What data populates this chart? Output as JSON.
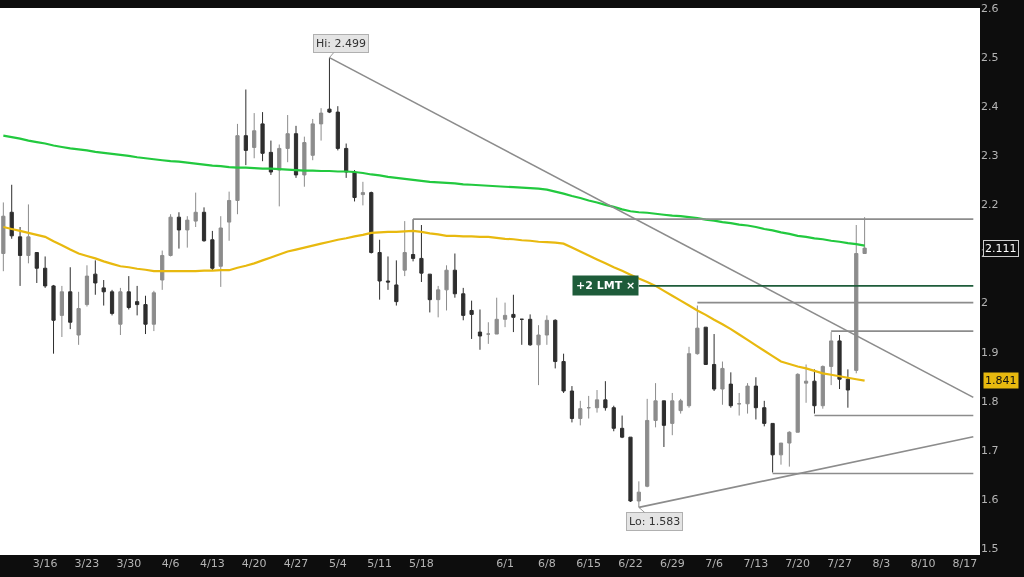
{
  "chart_data": {
    "type": "candlestick",
    "categories": [
      null,
      null,
      null,
      null,
      null,
      "3/16",
      null,
      null,
      null,
      null,
      "3/23",
      null,
      null,
      null,
      null,
      "3/30",
      null,
      null,
      null,
      null,
      "4/6",
      null,
      null,
      null,
      null,
      "4/13",
      null,
      null,
      null,
      null,
      "4/20",
      null,
      null,
      null,
      null,
      "4/27",
      null,
      null,
      null,
      null,
      "5/4",
      null,
      null,
      null,
      null,
      "5/11",
      null,
      null,
      null,
      null,
      "5/18",
      null,
      null,
      null,
      null,
      null,
      null,
      null,
      null,
      null,
      "6/1",
      null,
      null,
      null,
      null,
      "6/8",
      null,
      null,
      null,
      null,
      "6/15",
      null,
      null,
      null,
      null,
      "6/22",
      null,
      null,
      null,
      null,
      "6/29",
      null,
      null,
      null,
      null,
      "7/6",
      null,
      null,
      null,
      null,
      "7/13",
      null,
      null,
      null,
      null,
      "7/20",
      null,
      null,
      null,
      null,
      "7/27",
      null,
      null,
      null,
      null,
      "8/3",
      null,
      null,
      null,
      null,
      "8/10",
      null,
      null,
      null,
      null,
      "8/17",
      null
    ],
    "ohlc": [
      [
        2.1,
        2.204,
        2.064,
        2.176
      ],
      [
        2.184,
        2.24,
        2.13,
        2.136
      ],
      [
        2.134,
        2.154,
        2.034,
        2.096
      ],
      [
        2.096,
        2.2,
        2.08,
        2.134
      ],
      [
        2.102,
        2.102,
        2.04,
        2.07
      ],
      [
        2.07,
        2.094,
        2.03,
        2.034
      ],
      [
        2.034,
        2.036,
        1.896,
        1.964
      ],
      [
        1.974,
        2.034,
        1.93,
        2.022
      ],
      [
        2.022,
        2.072,
        1.946,
        1.96
      ],
      [
        1.934,
        2.022,
        1.914,
        1.988
      ],
      [
        1.996,
        2.076,
        1.992,
        2.054
      ],
      [
        2.058,
        2.086,
        2.016,
        2.04
      ],
      [
        2.03,
        2.046,
        1.994,
        2.022
      ],
      [
        2.022,
        2.026,
        1.974,
        1.978
      ],
      [
        1.956,
        2.03,
        1.934,
        2.022
      ],
      [
        2.022,
        2.054,
        1.986,
        1.99
      ],
      [
        2.002,
        2.034,
        1.974,
        1.996
      ],
      [
        1.996,
        2.014,
        1.936,
        1.956
      ],
      [
        1.956,
        2.024,
        1.942,
        2.02
      ],
      [
        2.046,
        2.106,
        2.026,
        2.096
      ],
      [
        2.096,
        2.18,
        2.094,
        2.174
      ],
      [
        2.174,
        2.184,
        2.11,
        2.148
      ],
      [
        2.148,
        2.176,
        2.112,
        2.168
      ],
      [
        2.166,
        2.224,
        2.154,
        2.184
      ],
      [
        2.184,
        2.194,
        2.124,
        2.126
      ],
      [
        2.128,
        2.146,
        2.066,
        2.07
      ],
      [
        2.074,
        2.176,
        2.032,
        2.152
      ],
      [
        2.164,
        2.226,
        2.126,
        2.208
      ],
      [
        2.208,
        2.364,
        2.18,
        2.34
      ],
      [
        2.34,
        2.434,
        2.28,
        2.31
      ],
      [
        2.316,
        2.386,
        2.294,
        2.35
      ],
      [
        2.364,
        2.388,
        2.288,
        2.304
      ],
      [
        2.306,
        2.33,
        2.26,
        2.266
      ],
      [
        2.27,
        2.322,
        2.196,
        2.314
      ],
      [
        2.314,
        2.382,
        2.286,
        2.344
      ],
      [
        2.344,
        2.36,
        2.254,
        2.26
      ],
      [
        2.26,
        2.338,
        2.236,
        2.326
      ],
      [
        2.3,
        2.374,
        2.29,
        2.364
      ],
      [
        2.364,
        2.396,
        2.33,
        2.386
      ],
      [
        2.394,
        2.499,
        2.386,
        2.388
      ],
      [
        2.388,
        2.4,
        2.31,
        2.314
      ],
      [
        2.314,
        2.324,
        2.254,
        2.266
      ],
      [
        2.266,
        2.27,
        2.206,
        2.214
      ],
      [
        2.22,
        2.246,
        2.198,
        2.224
      ],
      [
        2.224,
        2.226,
        2.1,
        2.102
      ],
      [
        2.102,
        2.128,
        2.006,
        2.044
      ],
      [
        2.044,
        2.094,
        2.026,
        2.042
      ],
      [
        2.036,
        2.086,
        1.994,
        2.002
      ],
      [
        2.066,
        2.166,
        2.054,
        2.102
      ],
      [
        2.098,
        2.17,
        2.084,
        2.09
      ],
      [
        2.09,
        2.158,
        2.042,
        2.06
      ],
      [
        2.058,
        2.058,
        1.98,
        2.006
      ],
      [
        2.006,
        2.034,
        1.97,
        2.026
      ],
      [
        2.026,
        2.076,
        1.984,
        2.066
      ],
      [
        2.066,
        2.1,
        2.01,
        2.018
      ],
      [
        2.018,
        2.03,
        1.964,
        1.974
      ],
      [
        1.984,
        2.004,
        1.926,
        1.976
      ],
      [
        1.94,
        1.986,
        1.904,
        1.932
      ],
      [
        1.936,
        1.96,
        1.916,
        1.936
      ],
      [
        1.936,
        2.01,
        1.936,
        1.966
      ],
      [
        1.966,
        2.0,
        1.95,
        1.974
      ],
      [
        1.976,
        2.016,
        1.94,
        1.97
      ],
      [
        1.966,
        1.966,
        1.914,
        1.966
      ],
      [
        1.966,
        1.976,
        1.912,
        1.914
      ],
      [
        1.914,
        1.954,
        1.832,
        1.934
      ],
      [
        1.934,
        1.974,
        1.914,
        1.964
      ],
      [
        1.964,
        1.966,
        1.866,
        1.88
      ],
      [
        1.88,
        1.896,
        1.816,
        1.82
      ],
      [
        1.82,
        1.83,
        1.756,
        1.764
      ],
      [
        1.764,
        1.8,
        1.75,
        1.784
      ],
      [
        1.786,
        1.81,
        1.764,
        1.786
      ],
      [
        1.786,
        1.822,
        1.776,
        1.802
      ],
      [
        1.802,
        1.84,
        1.78,
        1.786
      ],
      [
        1.786,
        1.79,
        1.738,
        1.744
      ],
      [
        1.744,
        1.77,
        1.724,
        1.726
      ],
      [
        1.726,
        1.726,
        1.594,
        1.596
      ],
      [
        1.596,
        1.636,
        1.583,
        1.614
      ],
      [
        1.626,
        1.804,
        1.624,
        1.76
      ],
      [
        1.76,
        1.836,
        1.746,
        1.8
      ],
      [
        1.8,
        1.8,
        1.706,
        1.75
      ],
      [
        1.754,
        1.816,
        1.73,
        1.8
      ],
      [
        1.78,
        1.804,
        1.774,
        1.8
      ],
      [
        1.79,
        1.91,
        1.786,
        1.896
      ],
      [
        1.896,
        1.994,
        1.894,
        1.948
      ],
      [
        1.95,
        1.95,
        1.874,
        1.874
      ],
      [
        1.874,
        1.936,
        1.82,
        1.824
      ],
      [
        1.824,
        1.88,
        1.792,
        1.866
      ],
      [
        1.834,
        1.858,
        1.786,
        1.79
      ],
      [
        1.794,
        1.816,
        1.77,
        1.794
      ],
      [
        1.794,
        1.836,
        1.774,
        1.83
      ],
      [
        1.83,
        1.848,
        1.762,
        1.786
      ],
      [
        1.786,
        1.8,
        1.748,
        1.754
      ],
      [
        1.754,
        1.754,
        1.654,
        1.69
      ],
      [
        1.69,
        1.714,
        1.67,
        1.714
      ],
      [
        1.714,
        1.738,
        1.666,
        1.736
      ],
      [
        1.736,
        1.856,
        1.736,
        1.854
      ],
      [
        1.836,
        1.874,
        1.796,
        1.84
      ],
      [
        1.84,
        1.864,
        1.774,
        1.79
      ],
      [
        1.79,
        1.872,
        1.784,
        1.87
      ],
      [
        1.87,
        1.94,
        1.832,
        1.922
      ],
      [
        1.922,
        1.934,
        1.824,
        1.844
      ],
      [
        1.844,
        1.864,
        1.786,
        1.822
      ],
      [
        1.862,
        2.158,
        1.856,
        2.1
      ],
      [
        2.1,
        2.174,
        2.1,
        2.111
      ],
      null,
      null,
      null,
      null,
      null,
      null,
      null,
      null,
      null,
      null,
      null,
      null,
      null
    ],
    "series": [
      {
        "type": "line",
        "color": "#22c93f",
        "values": [
          2.34,
          2.337,
          2.334,
          2.33,
          2.327,
          2.324,
          2.32,
          2.317,
          2.314,
          2.312,
          2.31,
          2.307,
          2.305,
          2.303,
          2.301,
          2.299,
          2.296,
          2.294,
          2.292,
          2.29,
          2.288,
          2.287,
          2.285,
          2.283,
          2.281,
          2.279,
          2.278,
          2.276,
          2.275,
          2.275,
          2.274,
          2.273,
          2.273,
          2.272,
          2.271,
          2.27,
          2.269,
          2.269,
          2.268,
          2.268,
          2.267,
          2.267,
          2.266,
          2.264,
          2.261,
          2.259,
          2.256,
          2.254,
          2.252,
          2.25,
          2.248,
          2.246,
          2.245,
          2.244,
          2.243,
          2.241,
          2.24,
          2.239,
          2.238,
          2.237,
          2.236,
          2.235,
          2.234,
          2.233,
          2.232,
          2.23,
          2.226,
          2.222,
          2.217,
          2.213,
          2.208,
          2.204,
          2.199,
          2.195,
          2.19,
          2.186,
          2.184,
          2.183,
          2.181,
          2.179,
          2.177,
          2.176,
          2.174,
          2.172,
          2.169,
          2.167,
          2.164,
          2.162,
          2.159,
          2.157,
          2.154,
          2.15,
          2.147,
          2.143,
          2.14,
          2.136,
          2.134,
          2.131,
          2.129,
          2.126,
          2.124,
          2.121,
          2.119,
          2.116,
          null,
          null,
          null,
          null,
          null,
          null,
          null,
          null,
          null,
          null,
          null,
          null,
          null
        ]
      },
      {
        "type": "line",
        "color": "#e8b90f",
        "values": [
          2.154,
          2.15,
          2.146,
          2.142,
          2.138,
          2.134,
          2.125,
          2.117,
          2.108,
          2.1,
          2.095,
          2.09,
          2.084,
          2.079,
          2.074,
          2.072,
          2.069,
          2.067,
          2.064,
          2.064,
          2.064,
          2.064,
          2.064,
          2.064,
          2.065,
          2.065,
          2.066,
          2.066,
          2.071,
          2.075,
          2.08,
          2.086,
          2.092,
          2.098,
          2.104,
          2.108,
          2.112,
          2.116,
          2.12,
          2.124,
          2.128,
          2.131,
          2.135,
          2.138,
          2.142,
          2.143,
          2.144,
          2.144,
          2.145,
          2.146,
          2.144,
          2.141,
          2.139,
          2.136,
          2.136,
          2.135,
          2.135,
          2.134,
          2.134,
          2.132,
          2.13,
          2.129,
          2.127,
          2.126,
          2.124,
          2.123,
          2.122,
          2.12,
          2.112,
          2.104,
          2.096,
          2.088,
          2.08,
          2.072,
          2.065,
          2.057,
          2.049,
          2.042,
          2.034,
          2.024,
          2.014,
          2.004,
          1.994,
          1.984,
          1.975,
          1.965,
          1.956,
          1.946,
          1.935,
          1.924,
          1.913,
          1.902,
          1.891,
          1.88,
          1.875,
          1.87,
          1.866,
          1.861,
          1.856,
          1.853,
          1.85,
          1.847,
          1.844,
          1.841,
          null,
          null,
          null,
          null,
          null,
          null,
          null,
          null,
          null,
          null,
          null,
          null,
          null
        ]
      },
      {
        "type": "line",
        "color": "#8c8c8c",
        "values": [
          null,
          null,
          null,
          null,
          null,
          null,
          null,
          null,
          null,
          null,
          null,
          null,
          null,
          null,
          null,
          null,
          null,
          null,
          null,
          null,
          null,
          null,
          null,
          null,
          null,
          null,
          null,
          null,
          null,
          null,
          null,
          null,
          null,
          null,
          null,
          null,
          null,
          null,
          null,
          null,
          null,
          null,
          null,
          null,
          null,
          null,
          null,
          null,
          null,
          2.17,
          null,
          null,
          null,
          null,
          null,
          null,
          null,
          null,
          null,
          null,
          null,
          null,
          null,
          null,
          null,
          null,
          null,
          null,
          null,
          null,
          null,
          null,
          null,
          null,
          null,
          null,
          null,
          null,
          null,
          null,
          null,
          null,
          null,
          null,
          null,
          null,
          null,
          null,
          null,
          null,
          null,
          null,
          null,
          null,
          null,
          null,
          null,
          null,
          null,
          null,
          null,
          null,
          null,
          null,
          null,
          null,
          null,
          null,
          null,
          null,
          null,
          null,
          null,
          null,
          null,
          null,
          2.17
        ]
      },
      {
        "type": "line",
        "color": "#8c8c8c",
        "values": [
          null,
          null,
          null,
          null,
          null,
          null,
          null,
          null,
          null,
          null,
          null,
          null,
          null,
          null,
          null,
          null,
          null,
          null,
          null,
          null,
          null,
          null,
          null,
          null,
          null,
          null,
          null,
          null,
          null,
          null,
          null,
          null,
          null,
          null,
          null,
          null,
          null,
          null,
          null,
          null,
          null,
          null,
          null,
          null,
          null,
          null,
          null,
          null,
          null,
          null,
          null,
          null,
          null,
          null,
          null,
          null,
          null,
          null,
          null,
          null,
          null,
          null,
          null,
          null,
          null,
          null,
          null,
          null,
          null,
          null,
          null,
          null,
          null,
          null,
          null,
          null,
          null,
          null,
          null,
          null,
          null,
          null,
          null,
          2.0,
          null,
          null,
          null,
          null,
          null,
          null,
          null,
          null,
          null,
          null,
          null,
          null,
          null,
          null,
          null,
          null,
          null,
          null,
          null,
          null,
          null,
          null,
          null,
          null,
          null,
          null,
          null,
          null,
          null,
          null,
          null,
          null,
          2.0
        ]
      },
      {
        "type": "line",
        "color": "#8c8c8c",
        "values": [
          null,
          null,
          null,
          null,
          null,
          null,
          null,
          null,
          null,
          null,
          null,
          null,
          null,
          null,
          null,
          null,
          null,
          null,
          null,
          null,
          null,
          null,
          null,
          null,
          null,
          null,
          null,
          null,
          null,
          null,
          null,
          null,
          null,
          null,
          null,
          null,
          null,
          null,
          null,
          null,
          null,
          null,
          null,
          null,
          null,
          null,
          null,
          null,
          null,
          null,
          null,
          null,
          null,
          null,
          null,
          null,
          null,
          null,
          null,
          null,
          null,
          null,
          null,
          null,
          null,
          null,
          null,
          null,
          null,
          null,
          null,
          null,
          null,
          null,
          null,
          null,
          null,
          null,
          null,
          null,
          null,
          null,
          null,
          null,
          null,
          null,
          null,
          null,
          null,
          null,
          null,
          null,
          null,
          null,
          null,
          null,
          null,
          null,
          null,
          1.942,
          null,
          null,
          null,
          null,
          null,
          null,
          null,
          null,
          null,
          null,
          null,
          null,
          null,
          null,
          null,
          null,
          1.942
        ]
      },
      {
        "type": "line",
        "color": "#8c8c8c",
        "values": [
          null,
          null,
          null,
          null,
          null,
          null,
          null,
          null,
          null,
          null,
          null,
          null,
          null,
          null,
          null,
          null,
          null,
          null,
          null,
          null,
          null,
          null,
          null,
          null,
          null,
          null,
          null,
          null,
          null,
          null,
          null,
          null,
          null,
          null,
          null,
          null,
          null,
          null,
          null,
          null,
          null,
          null,
          null,
          null,
          null,
          null,
          null,
          null,
          null,
          null,
          null,
          null,
          null,
          null,
          null,
          null,
          null,
          null,
          null,
          null,
          null,
          null,
          null,
          null,
          null,
          null,
          null,
          null,
          null,
          null,
          null,
          null,
          null,
          null,
          null,
          null,
          null,
          null,
          null,
          null,
          null,
          null,
          null,
          null,
          null,
          null,
          null,
          null,
          null,
          null,
          null,
          null,
          null,
          null,
          null,
          null,
          null,
          1.77,
          null,
          null,
          null,
          null,
          null,
          null,
          null,
          null,
          null,
          null,
          null,
          null,
          null,
          null,
          null,
          null,
          null,
          null,
          1.77
        ]
      },
      {
        "type": "line",
        "color": "#8c8c8c",
        "values": [
          null,
          null,
          null,
          null,
          null,
          null,
          null,
          null,
          null,
          null,
          null,
          null,
          null,
          null,
          null,
          null,
          null,
          null,
          null,
          null,
          null,
          null,
          null,
          null,
          null,
          null,
          null,
          null,
          null,
          null,
          null,
          null,
          null,
          null,
          null,
          null,
          null,
          null,
          null,
          null,
          null,
          null,
          null,
          null,
          null,
          null,
          null,
          null,
          null,
          null,
          null,
          null,
          null,
          null,
          null,
          null,
          null,
          null,
          null,
          null,
          null,
          null,
          null,
          null,
          null,
          null,
          null,
          null,
          null,
          null,
          null,
          null,
          null,
          null,
          null,
          null,
          null,
          null,
          null,
          null,
          null,
          null,
          null,
          null,
          null,
          null,
          null,
          null,
          null,
          null,
          null,
          null,
          1.652,
          null,
          null,
          null,
          null,
          null,
          null,
          null,
          null,
          null,
          null,
          null,
          null,
          null,
          null,
          null,
          null,
          null,
          null,
          null,
          null,
          null,
          null,
          null,
          1.652
        ]
      },
      {
        "type": "line",
        "color": "#8c8c8c",
        "values": [
          null,
          null,
          null,
          null,
          null,
          null,
          null,
          null,
          null,
          null,
          null,
          null,
          null,
          null,
          null,
          null,
          null,
          null,
          null,
          null,
          null,
          null,
          null,
          null,
          null,
          null,
          null,
          null,
          null,
          null,
          null,
          null,
          null,
          null,
          null,
          null,
          null,
          null,
          null,
          2.499,
          null,
          null,
          null,
          null,
          null,
          null,
          null,
          null,
          null,
          null,
          null,
          null,
          null,
          null,
          null,
          null,
          null,
          null,
          null,
          null,
          null,
          null,
          null,
          null,
          null,
          null,
          null,
          null,
          null,
          null,
          null,
          null,
          null,
          null,
          null,
          null,
          null,
          null,
          null,
          null,
          null,
          null,
          null,
          null,
          null,
          null,
          null,
          null,
          null,
          null,
          null,
          null,
          null,
          null,
          null,
          null,
          null,
          null,
          null,
          null,
          null,
          null,
          null,
          null,
          null,
          null,
          null,
          null,
          null,
          null,
          null,
          null,
          null,
          null,
          null,
          null,
          1.807
        ]
      },
      {
        "type": "line",
        "color": "#8c8c8c",
        "values": [
          null,
          null,
          null,
          null,
          null,
          null,
          null,
          null,
          null,
          null,
          null,
          null,
          null,
          null,
          null,
          null,
          null,
          null,
          null,
          null,
          null,
          null,
          null,
          null,
          null,
          null,
          null,
          null,
          null,
          null,
          null,
          null,
          null,
          null,
          null,
          null,
          null,
          null,
          null,
          null,
          null,
          null,
          null,
          null,
          null,
          null,
          null,
          null,
          null,
          null,
          null,
          null,
          null,
          null,
          null,
          null,
          null,
          null,
          null,
          null,
          null,
          null,
          null,
          null,
          null,
          null,
          null,
          null,
          null,
          null,
          null,
          null,
          null,
          null,
          null,
          null,
          1.583,
          null,
          null,
          null,
          null,
          null,
          null,
          null,
          null,
          null,
          null,
          null,
          null,
          null,
          null,
          null,
          null,
          null,
          null,
          null,
          null,
          null,
          null,
          null,
          null,
          null,
          null,
          null,
          null,
          null,
          null,
          null,
          null,
          null,
          null,
          null,
          null,
          null,
          null,
          null,
          1.727
        ]
      },
      {
        "type": "line",
        "color": "#1e5c3a",
        "values": [
          null,
          null,
          null,
          null,
          null,
          null,
          null,
          null,
          null,
          null,
          null,
          null,
          null,
          null,
          null,
          null,
          null,
          null,
          null,
          null,
          null,
          null,
          null,
          null,
          null,
          null,
          null,
          null,
          null,
          null,
          null,
          null,
          null,
          null,
          null,
          null,
          null,
          null,
          null,
          null,
          null,
          null,
          null,
          null,
          null,
          null,
          null,
          null,
          null,
          null,
          null,
          null,
          null,
          null,
          null,
          null,
          null,
          null,
          null,
          null,
          null,
          null,
          null,
          null,
          null,
          null,
          null,
          null,
          null,
          null,
          null,
          null,
          null,
          null,
          null,
          null,
          2.034,
          null,
          null,
          null,
          null,
          null,
          null,
          null,
          null,
          null,
          null,
          null,
          null,
          null,
          null,
          null,
          null,
          null,
          null,
          null,
          null,
          null,
          null,
          null,
          null,
          null,
          null,
          null,
          null,
          null,
          null,
          null,
          null,
          null,
          null,
          null,
          null,
          null,
          null,
          null,
          2.034
        ]
      }
    ],
    "ylim": [
      1.486,
      2.6
    ],
    "yticks": [
      1.5,
      1.6,
      1.7,
      1.8,
      1.9,
      2,
      2.1,
      2.2,
      2.3,
      2.4,
      2.5,
      2.6
    ],
    "annotations": [
      {
        "text": "Hi: 2.499",
        "y": 2.499
      },
      {
        "text": "Lo: 1.583",
        "y": 1.583
      },
      "+2 LMT ×",
      "2.111",
      "1.841"
    ]
  }
}
